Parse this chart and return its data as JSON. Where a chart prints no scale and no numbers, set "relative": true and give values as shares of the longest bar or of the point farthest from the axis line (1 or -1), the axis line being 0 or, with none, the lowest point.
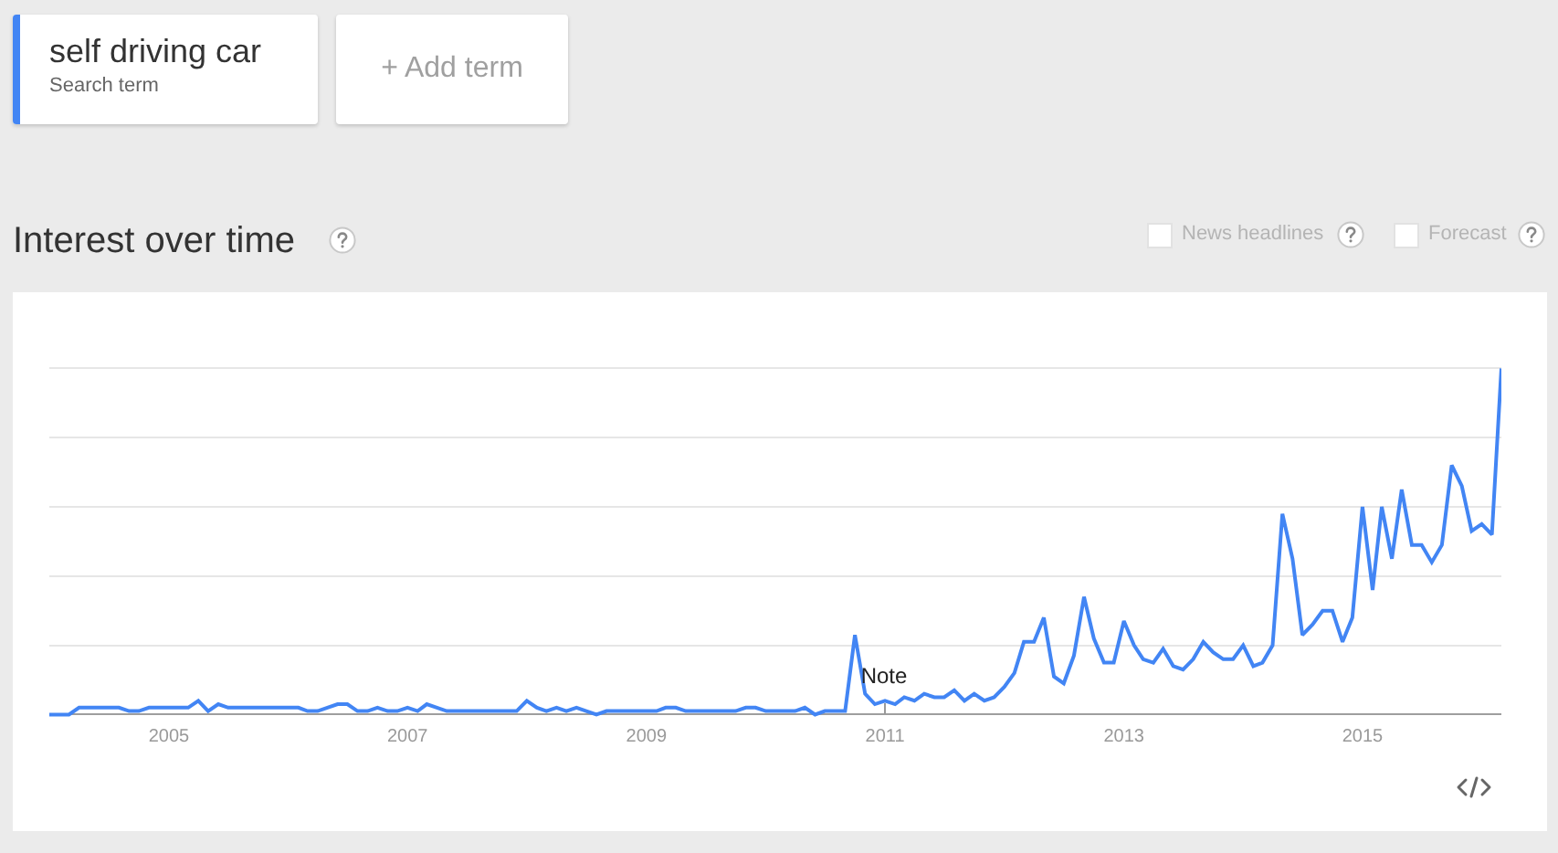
{
  "chart_data": {
    "type": "line",
    "title": "Interest over time",
    "legend": "top left",
    "legend_title": "Search term",
    "relative": true,
    "grid": "y",
    "xlim": [
      "2004-01",
      "2016-03"
    ],
    "xticks": [
      "2005",
      "2007",
      "2009",
      "2011",
      "2013",
      "2015"
    ],
    "x": [
      "2004-01",
      "2004-02",
      "2004-03",
      "2004-04",
      "2004-05",
      "2004-06",
      "2004-07",
      "2004-08",
      "2004-09",
      "2004-10",
      "2004-11",
      "2004-12",
      "2005-01",
      "2005-02",
      "2005-03",
      "2005-04",
      "2005-05",
      "2005-06",
      "2005-07",
      "2005-08",
      "2005-09",
      "2005-10",
      "2005-11",
      "2005-12",
      "2006-01",
      "2006-02",
      "2006-03",
      "2006-04",
      "2006-05",
      "2006-06",
      "2006-07",
      "2006-08",
      "2006-09",
      "2006-10",
      "2006-11",
      "2006-12",
      "2007-01",
      "2007-02",
      "2007-03",
      "2007-04",
      "2007-05",
      "2007-06",
      "2007-07",
      "2007-08",
      "2007-09",
      "2007-10",
      "2007-11",
      "2007-12",
      "2008-01",
      "2008-02",
      "2008-03",
      "2008-04",
      "2008-05",
      "2008-06",
      "2008-07",
      "2008-08",
      "2008-09",
      "2008-10",
      "2008-11",
      "2008-12",
      "2009-01",
      "2009-02",
      "2009-03",
      "2009-04",
      "2009-05",
      "2009-06",
      "2009-07",
      "2009-08",
      "2009-09",
      "2009-10",
      "2009-11",
      "2009-12",
      "2010-01",
      "2010-02",
      "2010-03",
      "2010-04",
      "2010-05",
      "2010-06",
      "2010-07",
      "2010-08",
      "2010-09",
      "2010-10",
      "2010-11",
      "2010-12",
      "2011-01",
      "2011-02",
      "2011-03",
      "2011-04",
      "2011-05",
      "2011-06",
      "2011-07",
      "2011-08",
      "2011-09",
      "2011-10",
      "2011-11",
      "2011-12",
      "2012-01",
      "2012-02",
      "2012-03",
      "2012-04",
      "2012-05",
      "2012-06",
      "2012-07",
      "2012-08",
      "2012-09",
      "2012-10",
      "2012-11",
      "2012-12",
      "2013-01",
      "2013-02",
      "2013-03",
      "2013-04",
      "2013-05",
      "2013-06",
      "2013-07",
      "2013-08",
      "2013-09",
      "2013-10",
      "2013-11",
      "2013-12",
      "2014-01",
      "2014-02",
      "2014-03",
      "2014-04",
      "2014-05",
      "2014-06",
      "2014-07",
      "2014-08",
      "2014-09",
      "2014-10",
      "2014-11",
      "2014-12",
      "2015-01",
      "2015-02",
      "2015-03",
      "2015-04",
      "2015-05",
      "2015-06",
      "2015-07",
      "2015-08",
      "2015-09",
      "2015-10",
      "2015-11",
      "2015-12",
      "2016-01",
      "2016-02",
      "2016-03"
    ],
    "series": [
      {
        "name": "self driving car",
        "color": "#4285f4",
        "values": [
          0,
          0,
          0,
          0.02,
          0.02,
          0.02,
          0.02,
          0.02,
          0.01,
          0.01,
          0.02,
          0.02,
          0.02,
          0.02,
          0.02,
          0.04,
          0.01,
          0.03,
          0.02,
          0.02,
          0.02,
          0.02,
          0.02,
          0.02,
          0.02,
          0.02,
          0.01,
          0.01,
          0.02,
          0.03,
          0.03,
          0.01,
          0.01,
          0.02,
          0.01,
          0.01,
          0.02,
          0.01,
          0.03,
          0.02,
          0.01,
          0.01,
          0.01,
          0.01,
          0.01,
          0.01,
          0.01,
          0.01,
          0.04,
          0.02,
          0.01,
          0.02,
          0.01,
          0.02,
          0.01,
          0,
          0.01,
          0.01,
          0.01,
          0.01,
          0.01,
          0.01,
          0.02,
          0.02,
          0.01,
          0.01,
          0.01,
          0.01,
          0.01,
          0.01,
          0.02,
          0.02,
          0.01,
          0.01,
          0.01,
          0.01,
          0.02,
          0,
          0.01,
          0.01,
          0.01,
          0.23,
          0.06,
          0.03,
          0.04,
          0.03,
          0.05,
          0.04,
          0.06,
          0.05,
          0.05,
          0.07,
          0.04,
          0.06,
          0.04,
          0.05,
          0.08,
          0.12,
          0.21,
          0.21,
          0.28,
          0.11,
          0.09,
          0.17,
          0.34,
          0.22,
          0.15,
          0.15,
          0.27,
          0.2,
          0.16,
          0.15,
          0.19,
          0.14,
          0.13,
          0.16,
          0.21,
          0.18,
          0.16,
          0.16,
          0.2,
          0.14,
          0.15,
          0.2,
          0.58,
          0.45,
          0.23,
          0.26,
          0.3,
          0.3,
          0.21,
          0.28,
          0.6,
          0.36,
          0.6,
          0.45,
          0.65,
          0.49,
          0.49,
          0.44,
          0.49,
          0.72,
          0.66,
          0.53,
          0.55,
          0.52,
          1
        ]
      }
    ],
    "annotations": [
      "+ Add term",
      "News headlines",
      "Forecast",
      "Note"
    ]
  }
}
